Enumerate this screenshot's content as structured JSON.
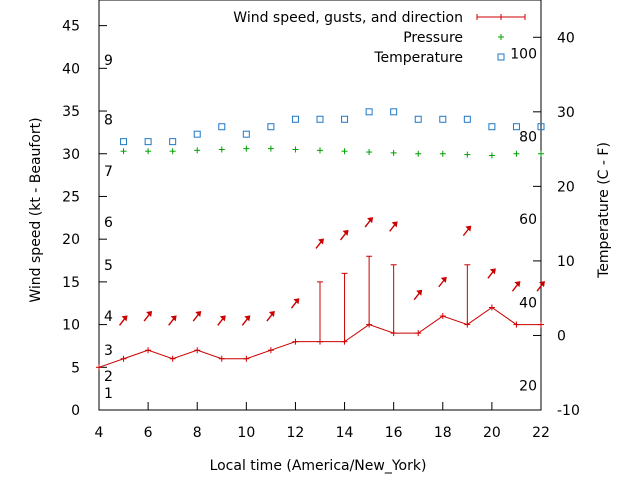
{
  "chart_data": {
    "type": "line",
    "xlabel": "Local time (America/New_York)",
    "ylabel": "Wind speed (kt - Beaufort)",
    "y2label": "Temperature (C - F)",
    "xlim": [
      4,
      22
    ],
    "ylim": [
      0,
      48
    ],
    "y2lim": [
      -10,
      45
    ],
    "x_ticks": [
      4,
      6,
      8,
      10,
      12,
      14,
      16,
      18,
      20,
      22
    ],
    "y_ticks": [
      0,
      5,
      10,
      15,
      20,
      25,
      30,
      35,
      40,
      45
    ],
    "y2_ticks": [
      -10,
      0,
      10,
      20,
      30,
      40
    ],
    "beaufort_labels": [
      {
        "label": "1",
        "value": 2
      },
      {
        "label": "2",
        "value": 4
      },
      {
        "label": "3",
        "value": 7
      },
      {
        "label": "4",
        "value": 11
      },
      {
        "label": "5",
        "value": 17
      },
      {
        "label": "6",
        "value": 22
      },
      {
        "label": "7",
        "value": 28
      },
      {
        "label": "8",
        "value": 34
      },
      {
        "label": "9",
        "value": 41
      }
    ],
    "fahrenheit_labels": [
      {
        "label": "20",
        "value": -6.7
      },
      {
        "label": "40",
        "value": 4.4
      },
      {
        "label": "60",
        "value": 15.6
      },
      {
        "label": "80",
        "value": 26.7
      },
      {
        "label": "100",
        "value": 37.8
      }
    ],
    "grid": false,
    "legend": "top-right",
    "series": [
      {
        "name": "Wind speed, gusts, and direction",
        "color": "#cc0000",
        "x": [
          4,
          5,
          6,
          7,
          8,
          9,
          10,
          11,
          12,
          13,
          14,
          15,
          16,
          17,
          18,
          19,
          20,
          21,
          22
        ],
        "values": [
          5,
          6,
          7,
          6,
          7,
          6,
          6,
          7,
          8,
          8,
          8,
          10,
          9,
          9,
          11,
          10,
          12,
          10,
          10
        ],
        "gusts": [
          {
            "x": 13,
            "value": 15
          },
          {
            "x": 14,
            "value": 16
          },
          {
            "x": 15,
            "value": 18
          },
          {
            "x": 16,
            "value": 17
          },
          {
            "x": 19,
            "value": 17
          }
        ],
        "direction_arrows": [
          {
            "x": 5,
            "value": 10.5
          },
          {
            "x": 6,
            "value": 11
          },
          {
            "x": 7,
            "value": 10.5
          },
          {
            "x": 8,
            "value": 11
          },
          {
            "x": 9,
            "value": 10.5
          },
          {
            "x": 10,
            "value": 10.5
          },
          {
            "x": 11,
            "value": 11
          },
          {
            "x": 12,
            "value": 12.5
          },
          {
            "x": 13,
            "value": 19.5
          },
          {
            "x": 14,
            "value": 20.5
          },
          {
            "x": 15,
            "value": 22
          },
          {
            "x": 16,
            "value": 21.5
          },
          {
            "x": 17,
            "value": 13.5
          },
          {
            "x": 18,
            "value": 15
          },
          {
            "x": 19,
            "value": 21
          },
          {
            "x": 20,
            "value": 16
          },
          {
            "x": 21,
            "value": 14.5
          },
          {
            "x": 22,
            "value": 14.5
          }
        ]
      },
      {
        "name": "Pressure",
        "color": "#00a000",
        "x": [
          5,
          6,
          7,
          8,
          9,
          10,
          11,
          12,
          13,
          14,
          15,
          16,
          17,
          18,
          19,
          20,
          21,
          22
        ],
        "values": [
          30.3,
          30.3,
          30.3,
          30.4,
          30.5,
          30.6,
          30.6,
          30.5,
          30.4,
          30.3,
          30.2,
          30.1,
          30.0,
          30.0,
          29.9,
          29.8,
          30.0,
          30.0
        ]
      },
      {
        "name": "Temperature",
        "color": "#1e78c8",
        "axis": "right",
        "x": [
          5,
          6,
          7,
          8,
          9,
          10,
          11,
          12,
          13,
          14,
          15,
          16,
          17,
          18,
          19,
          20,
          21,
          22
        ],
        "values": [
          26,
          26,
          26,
          27,
          28,
          27,
          28,
          29,
          29,
          29,
          30,
          30,
          29,
          29,
          29,
          28,
          28,
          28
        ]
      }
    ]
  }
}
